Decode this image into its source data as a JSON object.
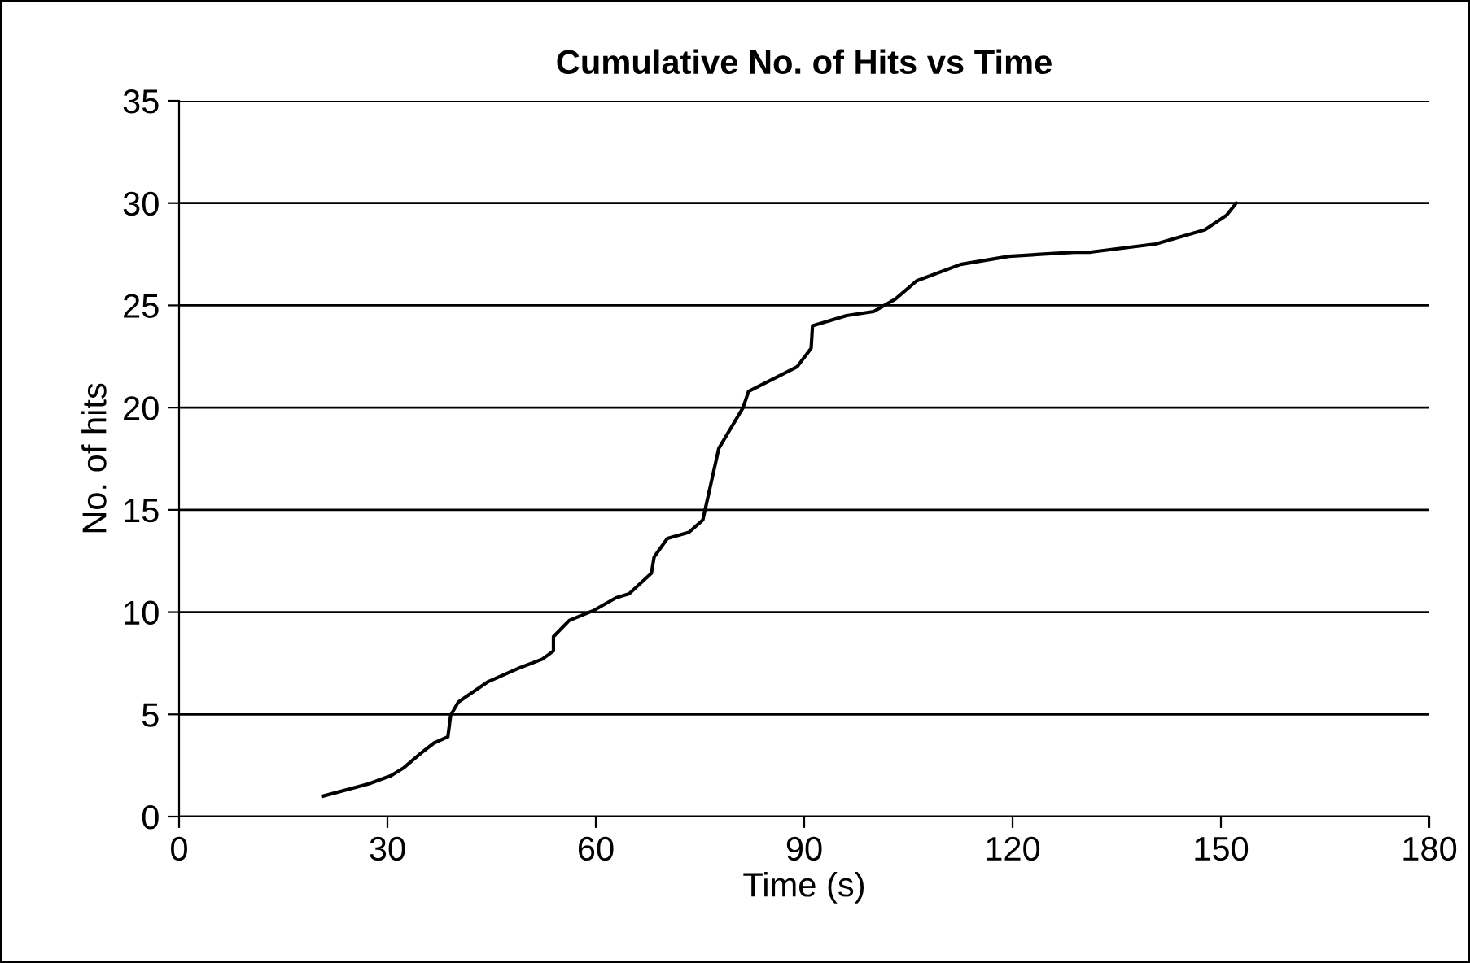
{
  "chart_data": {
    "type": "line",
    "title": "Cumulative No. of Hits vs Time",
    "xlabel": "Time (s)",
    "ylabel": "No. of hits",
    "series": [
      {
        "color": "#000000",
        "x": [
          20.7,
          27.3,
          30.5,
          32.4,
          34.8,
          36.7,
          38.7,
          39.1,
          40.2,
          44.5,
          49.2,
          52.3,
          53.9,
          53.9,
          56.2,
          59.8,
          62.9,
          64.8,
          68.0,
          68.4,
          70.3,
          73.4,
          75.4,
          77.7,
          81.2,
          82.0,
          86.7,
          89.0,
          91.0,
          91.2,
          96.1,
          100.0,
          103.1,
          106.2,
          112.5,
          119.5,
          128.9,
          131.2,
          140.6,
          147.7,
          150.8,
          152.2
        ],
        "values": [
          1.0,
          1.6,
          2.0,
          2.4,
          3.1,
          3.6,
          3.9,
          4.95,
          5.6,
          6.6,
          7.3,
          7.7,
          8.1,
          8.8,
          9.6,
          10.1,
          10.7,
          10.9,
          11.9,
          12.7,
          13.6,
          13.9,
          14.5,
          18.0,
          20.0,
          20.8,
          21.6,
          22.0,
          22.9,
          24.0,
          24.5,
          24.7,
          25.3,
          26.2,
          27.0,
          27.4,
          27.6,
          27.6,
          28.0,
          28.7,
          29.4,
          30.0
        ]
      }
    ],
    "xlim": [
      0,
      180
    ],
    "xticks": [
      0,
      30,
      60,
      90,
      120,
      150,
      180
    ],
    "ylim": [
      0,
      35
    ],
    "yticks": [
      0,
      5,
      10,
      15,
      20,
      25,
      30,
      35
    ],
    "grid": "y",
    "marker": "none",
    "line_style": "solid"
  }
}
